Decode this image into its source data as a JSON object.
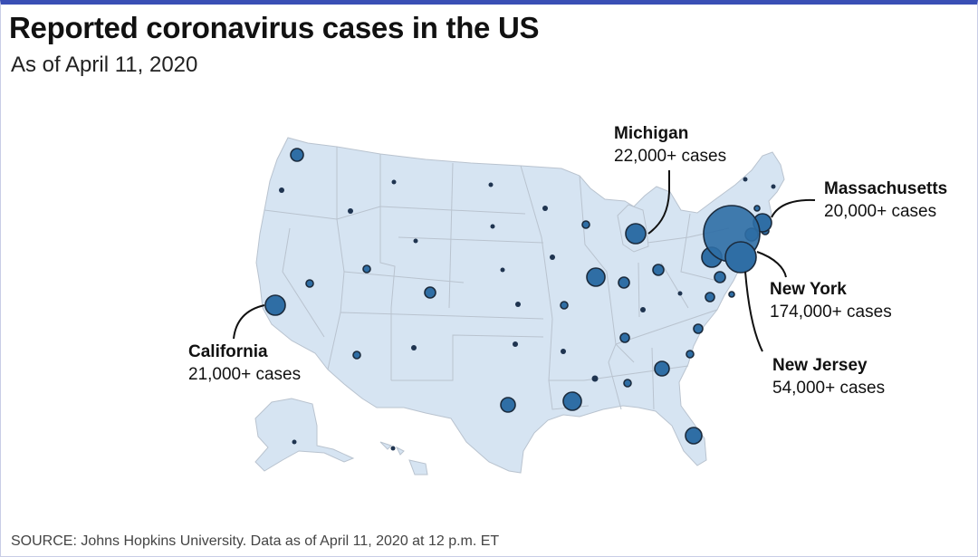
{
  "title": "Reported coronavirus cases in the US",
  "subtitle": "As of April 11, 2020",
  "source": "SOURCE: Johns Hopkins University. Data as of April 11, 2020 at 12 p.m. ET",
  "colors": {
    "land": "#d6e4f2",
    "bubble": "#2f6ea5",
    "accent": "#3a4fb5"
  },
  "callouts": {
    "michigan": {
      "name": "Michigan",
      "cases": "22,000+ cases"
    },
    "massachusetts": {
      "name": "Massachusetts",
      "cases": "20,000+ cases"
    },
    "new_york": {
      "name": "New York",
      "cases": "174,000+ cases"
    },
    "new_jersey": {
      "name": "New Jersey",
      "cases": "54,000+ cases"
    },
    "california": {
      "name": "California",
      "cases": "21,000+ cases"
    }
  }
}
